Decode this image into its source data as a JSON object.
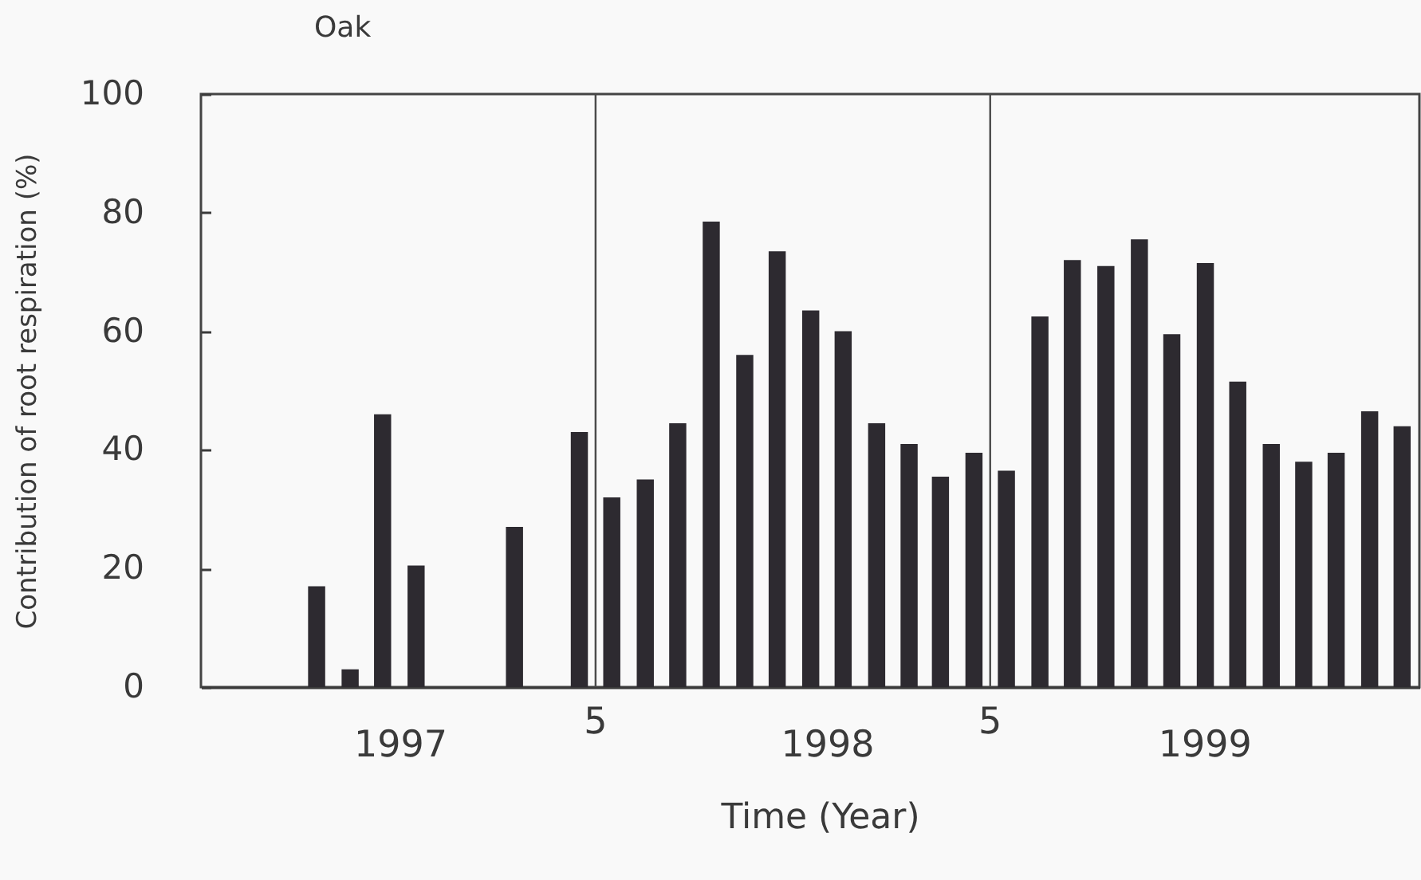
{
  "chart_data": {
    "type": "bar",
    "title": "Oak",
    "xlabel": "Time (Year)",
    "ylabel": "Contribution of root respiration (%)",
    "x": [
      "1997-08-16",
      "1997-09-16",
      "1997-10-16",
      "1997-11-16",
      "1998-02-15",
      "1998-04-16",
      "1998-05-16",
      "1998-06-16",
      "1998-07-16",
      "1998-08-16",
      "1998-09-16",
      "1998-10-16",
      "1998-11-16",
      "1998-12-16",
      "1999-01-16",
      "1999-02-15",
      "1999-03-16",
      "1999-04-16",
      "1999-05-16",
      "1999-06-16",
      "1999-07-16",
      "1999-08-16",
      "1999-09-16",
      "1999-10-16",
      "1999-11-16",
      "1999-12-16",
      "2000-01-16",
      "2000-02-15",
      "2000-03-16",
      "2000-04-16",
      "2000-05-16"
    ],
    "series": [
      {
        "color": "#2d2a30",
        "values": [
          17,
          3,
          46,
          20.5,
          27,
          43,
          32,
          35,
          44.5,
          78.5,
          56,
          73.5,
          63.5,
          60,
          44.5,
          41,
          35.5,
          39.5,
          36.5,
          62.5,
          72,
          71,
          75.5,
          59.5,
          71.5,
          51.5,
          41,
          38,
          39.5,
          46.5,
          44
        ]
      }
    ],
    "xlim": [
      "1997-05",
      "2000-06"
    ],
    "xticks": [
      {
        "value": "1997-11",
        "label": "1997"
      },
      {
        "value": "1998-12",
        "label": "1998"
      },
      {
        "value": "1999-11-15",
        "label": "1999"
      }
    ],
    "ylim": [
      0,
      100
    ],
    "yticks": [
      0,
      20,
      40,
      60,
      80,
      100
    ],
    "ref_lines": [
      {
        "axis": "x",
        "value": "1998-05",
        "label": "5",
        "color": "#4a4a4a"
      },
      {
        "axis": "x",
        "value": "1999-05",
        "label": "5",
        "color": "#4a4a4a"
      }
    ],
    "grid": false
  }
}
